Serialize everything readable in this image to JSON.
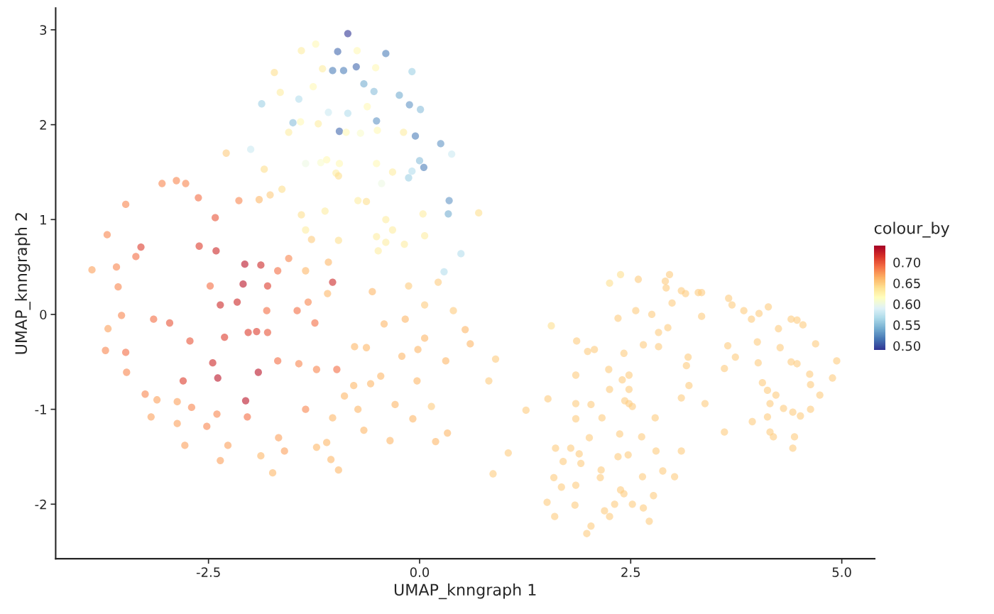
{
  "chart_data": {
    "type": "scatter",
    "xlabel": "UMAP_knngraph 1",
    "ylabel": "UMAP_knngraph 2",
    "clabel": "colour_by",
    "xlim": [
      -4.31,
      5.39
    ],
    "ylim": [
      -2.575,
      3.23
    ],
    "xticks": [
      {
        "value": -2.5,
        "label": "-2.5"
      },
      {
        "value": 0,
        "label": "0.0"
      },
      {
        "value": 2.5,
        "label": "2.5"
      },
      {
        "value": 5,
        "label": "5.0"
      }
    ],
    "yticks": [
      -2,
      -1,
      0,
      1,
      2,
      3
    ],
    "clim": [
      0.49,
      0.74
    ],
    "cticks": [
      {
        "value": 0.5,
        "label": "0.50"
      },
      {
        "value": 0.55,
        "label": "0.55"
      },
      {
        "value": 0.6,
        "label": "0.60"
      },
      {
        "value": 0.65,
        "label": "0.65"
      },
      {
        "value": 0.7,
        "label": "0.70"
      }
    ],
    "grid": false,
    "marker": "circle",
    "x": [
      -0.85,
      -0.97,
      -0.75,
      -1.03,
      -0.9,
      -0.4,
      -0.09,
      -0.54,
      -0.24,
      -0.12,
      0.01,
      -0.95,
      -0.51,
      -0.05,
      0.25,
      0.05,
      0.0,
      0.35,
      0.34,
      0.49,
      -1.87,
      -1.43,
      -1.5,
      -2.0,
      -1.08,
      -0.85,
      -0.66,
      -0.13,
      -0.09,
      -0.45,
      0.38,
      0.29,
      -1.23,
      -1.4,
      -0.74,
      -1.72,
      -1.15,
      -0.52,
      -1.26,
      -1.65,
      -0.62,
      -1.55,
      -1.41,
      -1.2,
      -0.87,
      -0.7,
      -0.5,
      -0.19,
      -1.1,
      -1.17,
      -1.35,
      -0.95,
      -0.99,
      -0.96,
      -0.51,
      -0.32,
      -1.84,
      -1.63,
      -1.77,
      -0.73,
      -0.63,
      -1.12,
      -1.4,
      -0.4,
      0.04,
      0.7,
      -1.35,
      -0.32,
      0.06,
      -1.28,
      -0.96,
      -0.51,
      -0.4,
      -0.18,
      -0.49,
      -2.29,
      -3.88,
      -3.7,
      -3.48,
      -3.05,
      -2.88,
      -2.77,
      -2.62,
      -2.42,
      -2.14,
      -1.9,
      -3.59,
      -3.36,
      -3.3,
      -2.61,
      -2.41,
      -2.07,
      -1.88,
      -2.09,
      -1.8,
      -2.48,
      -2.16,
      -2.36,
      -1.03,
      -1.24,
      -3.57,
      -3.53,
      -3.69,
      -3.15,
      -2.96,
      -2.03,
      -1.93,
      -1.8,
      -2.31,
      -2.72,
      -2.45,
      -2.39,
      -2.8,
      -3.48,
      -3.72,
      -3.47,
      -3.25,
      -3.11,
      -2.87,
      -2.7,
      -2.4,
      -3.18,
      -2.87,
      -2.52,
      -2.78,
      -2.27,
      -2.36,
      -2.06,
      -1.91,
      -2.04,
      -1.88,
      -1.74,
      -1.67,
      -1.6,
      -1.35,
      -1.68,
      -1.81,
      -1.68,
      -1.55,
      -1.45,
      -1.32,
      -1.43,
      -0.98,
      -1.22,
      -1.09,
      -1.08,
      -1.35,
      -0.56,
      -0.42,
      -0.17,
      -0.13,
      0.06,
      0.22,
      0.4,
      0.54,
      0.9,
      0.6,
      0.06,
      -0.21,
      -0.02,
      0.31,
      -0.63,
      -0.77,
      -0.46,
      -0.58,
      -0.78,
      -0.89,
      -0.73,
      -0.29,
      -0.03,
      0.14,
      -0.08,
      0.33,
      0.19,
      -0.35,
      -0.66,
      -1.03,
      -1.1,
      -1.05,
      -0.96,
      -1.22,
      1.05,
      0.87,
      0.82,
      1.56,
      1.26,
      1.52,
      1.86,
      1.85,
      1.99,
      2.07,
      1.85,
      2.03,
      2.24,
      2.25,
      2.16,
      2.01,
      1.61,
      1.85,
      1.79,
      1.89,
      1.91,
      1.7,
      1.59,
      1.68,
      1.85,
      1.51,
      1.6,
      1.84,
      1.98,
      2.03,
      2.15,
      2.14,
      2.35,
      2.47,
      2.37,
      2.38,
      2.42,
      2.31,
      2.19,
      2.25,
      2.52,
      2.65,
      2.72,
      2.77,
      2.88,
      3.02,
      2.64,
      2.63,
      2.8,
      2.79,
      2.43,
      2.48,
      2.52,
      2.4,
      2.48,
      2.42,
      2.48,
      2.35,
      2.56,
      2.25,
      2.38,
      2.59,
      2.65,
      2.75,
      2.83,
      2.83,
      2.94,
      2.96,
      2.91,
      2.92,
      2.99,
      3.1,
      3.15,
      3.3,
      3.34,
      3.34,
      3.18,
      3.16,
      3.1,
      3.19,
      3.38,
      3.1,
      3.61,
      3.61,
      3.65,
      3.66,
      3.7,
      3.74,
      3.84,
      3.93,
      4.02,
      4.13,
      4.25,
      4.4,
      4.47,
      4.54,
      4.0,
      4.01,
      4.27,
      4.4,
      4.47,
      4.69,
      4.94,
      4.89,
      4.62,
      4.63,
      4.06,
      4.12,
      4.22,
      4.15,
      4.74,
      4.31,
      4.42,
      4.51,
      4.63,
      4.12,
      3.94,
      4.15,
      4.19,
      4.44,
      4.42
    ],
    "values": [
      2.96,
      2.77,
      2.61,
      2.57,
      2.57,
      2.75,
      2.56,
      2.35,
      2.31,
      2.21,
      2.16,
      1.93,
      2.04,
      1.88,
      1.8,
      1.55,
      1.62,
      1.2,
      1.06,
      0.64,
      2.22,
      2.27,
      2.02,
      1.74,
      2.13,
      2.12,
      2.43,
      1.44,
      1.51,
      1.38,
      1.69,
      0.45,
      2.85,
      2.78,
      2.78,
      2.55,
      2.59,
      2.6,
      2.4,
      2.34,
      2.19,
      1.92,
      2.03,
      2.01,
      1.92,
      1.91,
      1.94,
      1.92,
      1.63,
      1.6,
      1.59,
      1.59,
      1.49,
      1.46,
      1.59,
      1.5,
      1.53,
      1.32,
      1.26,
      1.2,
      1.19,
      1.09,
      1.05,
      1.0,
      1.06,
      1.07,
      0.89,
      0.89,
      0.83,
      0.79,
      0.78,
      0.82,
      0.76,
      0.74,
      0.67,
      1.7,
      0.47,
      0.84,
      1.16,
      1.38,
      1.41,
      1.38,
      1.23,
      1.02,
      1.2,
      1.21,
      0.5,
      0.61,
      0.71,
      0.72,
      0.67,
      0.53,
      0.52,
      0.32,
      0.3,
      0.3,
      0.13,
      0.1,
      0.34,
      -0.09,
      0.29,
      -0.01,
      -0.15,
      -0.05,
      -0.09,
      -0.19,
      -0.18,
      -0.19,
      -0.24,
      -0.28,
      -0.51,
      -0.67,
      -0.7,
      -0.4,
      -0.38,
      -0.61,
      -0.84,
      -0.9,
      -0.92,
      -0.98,
      -1.05,
      -1.08,
      -1.15,
      -1.18,
      -1.38,
      -1.38,
      -1.54,
      -0.91,
      -0.61,
      -1.08,
      -1.49,
      -1.67,
      -1.3,
      -1.44,
      -1.0,
      -0.49,
      0.04,
      0.46,
      0.59,
      0.04,
      0.13,
      -0.52,
      -0.58,
      -0.58,
      0.22,
      0.55,
      0.46,
      0.24,
      -0.1,
      -0.05,
      0.3,
      0.1,
      0.34,
      0.04,
      -0.16,
      -0.47,
      -0.31,
      -0.25,
      -0.44,
      -0.37,
      -0.49,
      -0.35,
      -0.34,
      -0.65,
      -0.73,
      -0.75,
      -0.86,
      -1.0,
      -0.95,
      -0.7,
      -0.97,
      -1.1,
      -1.25,
      -1.34,
      -1.33,
      -1.22,
      -1.09,
      -1.35,
      -1.53,
      -1.64,
      -1.4,
      -1.46,
      -1.68,
      -0.7,
      -0.12,
      -1.01,
      -0.89,
      -0.28,
      -0.64,
      -0.39,
      -0.37,
      -0.94,
      -0.95,
      -0.58,
      -0.79,
      -1.09,
      -1.3,
      -1.41,
      -1.1,
      -1.41,
      -1.47,
      -1.57,
      -1.55,
      -1.72,
      -1.82,
      -1.8,
      -1.98,
      -2.13,
      -2.01,
      -2.31,
      -2.23,
      -1.64,
      -1.72,
      -1.5,
      -1.48,
      -1.26,
      -1.85,
      -1.89,
      -2.0,
      -2.07,
      -2.13,
      -2.0,
      -2.04,
      -2.18,
      -1.91,
      -1.65,
      -1.71,
      -1.71,
      -1.29,
      -1.44,
      -1.09,
      -0.91,
      -0.94,
      -0.97,
      -0.69,
      -0.64,
      -0.41,
      -0.79,
      -0.04,
      0.04,
      0.33,
      0.42,
      0.37,
      -0.32,
      0.0,
      -0.19,
      -0.34,
      -0.14,
      0.42,
      0.35,
      0.28,
      0.12,
      0.25,
      0.22,
      0.23,
      0.23,
      -0.02,
      -0.45,
      -0.54,
      -0.88,
      -0.75,
      -0.94,
      -1.44,
      -1.24,
      -0.57,
      -0.33,
      0.17,
      0.1,
      -0.45,
      0.04,
      -0.05,
      0.01,
      0.08,
      -0.15,
      -0.05,
      -0.06,
      -0.11,
      -0.29,
      -0.51,
      -0.35,
      -0.5,
      -0.52,
      -0.31,
      -0.49,
      -0.67,
      -0.63,
      -0.74,
      -0.72,
      -0.8,
      -0.85,
      -0.94,
      -0.85,
      -0.99,
      -1.03,
      -1.07,
      -1.0,
      -1.08,
      -1.13,
      -1.24,
      -1.29,
      -1.29,
      -1.41
    ],
    "cvalues": [
      0.49,
      0.51,
      0.51,
      0.52,
      0.52,
      0.52,
      0.56,
      0.55,
      0.54,
      0.53,
      0.55,
      0.51,
      0.53,
      0.52,
      0.53,
      0.52,
      0.55,
      0.53,
      0.54,
      0.57,
      0.56,
      0.57,
      0.55,
      0.58,
      0.58,
      0.57,
      0.54,
      0.56,
      0.57,
      0.6,
      0.58,
      0.57,
      0.62,
      0.63,
      0.62,
      0.64,
      0.63,
      0.62,
      0.62,
      0.63,
      0.62,
      0.63,
      0.62,
      0.63,
      0.62,
      0.61,
      0.62,
      0.63,
      0.62,
      0.61,
      0.6,
      0.62,
      0.63,
      0.64,
      0.62,
      0.63,
      0.64,
      0.64,
      0.65,
      0.63,
      0.64,
      0.63,
      0.64,
      0.63,
      0.63,
      0.64,
      0.63,
      0.63,
      0.63,
      0.65,
      0.64,
      0.63,
      0.63,
      0.63,
      0.63,
      0.65,
      0.67,
      0.68,
      0.68,
      0.68,
      0.68,
      0.68,
      0.69,
      0.7,
      0.68,
      0.66,
      0.68,
      0.69,
      0.71,
      0.71,
      0.72,
      0.73,
      0.72,
      0.73,
      0.71,
      0.69,
      0.72,
      0.72,
      0.72,
      0.69,
      0.68,
      0.68,
      0.67,
      0.69,
      0.7,
      0.71,
      0.71,
      0.7,
      0.71,
      0.7,
      0.72,
      0.73,
      0.71,
      0.69,
      0.68,
      0.68,
      0.68,
      0.67,
      0.67,
      0.68,
      0.68,
      0.67,
      0.67,
      0.68,
      0.67,
      0.67,
      0.67,
      0.73,
      0.73,
      0.69,
      0.66,
      0.66,
      0.67,
      0.67,
      0.68,
      0.69,
      0.69,
      0.69,
      0.68,
      0.69,
      0.68,
      0.68,
      0.69,
      0.68,
      0.66,
      0.66,
      0.66,
      0.66,
      0.66,
      0.66,
      0.65,
      0.65,
      0.65,
      0.65,
      0.66,
      0.65,
      0.66,
      0.66,
      0.66,
      0.66,
      0.66,
      0.66,
      0.66,
      0.66,
      0.66,
      0.66,
      0.66,
      0.66,
      0.66,
      0.66,
      0.65,
      0.66,
      0.66,
      0.66,
      0.66,
      0.66,
      0.66,
      0.66,
      0.66,
      0.66,
      0.66,
      0.65,
      0.65,
      0.65,
      0.64,
      0.65,
      0.65,
      0.65,
      0.65,
      0.65,
      0.65,
      0.65,
      0.65,
      0.65,
      0.65,
      0.65,
      0.65,
      0.65,
      0.65,
      0.65,
      0.65,
      0.65,
      0.65,
      0.65,
      0.65,
      0.65,
      0.65,
      0.65,
      0.65,
      0.65,
      0.65,
      0.65,
      0.65,
      0.65,
      0.65,
      0.65,
      0.65,
      0.65,
      0.65,
      0.65,
      0.65,
      0.65,
      0.65,
      0.65,
      0.65,
      0.65,
      0.65,
      0.65,
      0.65,
      0.65,
      0.65,
      0.65,
      0.65,
      0.65,
      0.65,
      0.65,
      0.65,
      0.65,
      0.65,
      0.65,
      0.64,
      0.64,
      0.65,
      0.65,
      0.65,
      0.65,
      0.65,
      0.65,
      0.65,
      0.65,
      0.65,
      0.65,
      0.65,
      0.65,
      0.65,
      0.65,
      0.65,
      0.65,
      0.65,
      0.65,
      0.65,
      0.65,
      0.65,
      0.65,
      0.65,
      0.65,
      0.65,
      0.65,
      0.65,
      0.65,
      0.65,
      0.65,
      0.65,
      0.65,
      0.65,
      0.65,
      0.65,
      0.65,
      0.65,
      0.65,
      0.65,
      0.65,
      0.65,
      0.65,
      0.65,
      0.65,
      0.65,
      0.65,
      0.65,
      0.65,
      0.65,
      0.65,
      0.65,
      0.65,
      0.65,
      0.65,
      0.65,
      0.65,
      0.65,
      0.65,
      0.65,
      0.65
    ]
  }
}
